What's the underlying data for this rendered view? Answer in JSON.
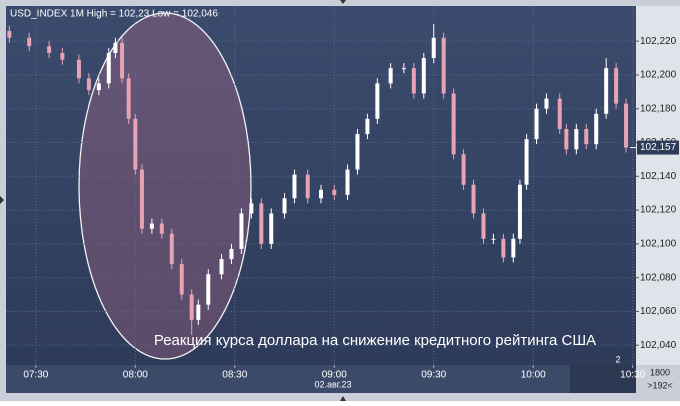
{
  "chart_data": {
    "type": "candlestick",
    "title": "USD_INDEX 1M High = 102,23 Low = 102,046",
    "annotation": "Реакция курса доллара на снижение кредитного рейтинга США",
    "x": [
      442,
      448,
      454,
      458,
      463,
      466,
      469,
      472,
      474,
      476,
      478,
      480,
      482,
      485,
      488,
      491,
      494,
      497,
      499,
      502,
      506,
      509,
      512,
      515,
      518,
      521,
      525,
      528,
      532,
      536,
      540,
      544,
      547,
      550,
      553,
      557,
      561,
      564,
      567,
      570,
      573,
      576,
      579,
      582,
      585,
      588,
      591,
      594,
      596,
      598,
      601,
      604,
      608,
      610,
      613,
      616,
      619,
      622,
      625,
      628
    ],
    "open": [
      102.226,
      102.222,
      102.217,
      102.213,
      102.209,
      102.198,
      102.191,
      102.195,
      102.213,
      102.219,
      102.198,
      102.174,
      102.144,
      102.109,
      102.112,
      102.106,
      102.088,
      102.07,
      102.055,
      102.064,
      102.082,
      102.091,
      102.097,
      102.118,
      102.124,
      102.1,
      102.118,
      102.127,
      102.141,
      102.127,
      102.132,
      102.129,
      102.144,
      102.165,
      102.174,
      102.195,
      102.204,
      102.204,
      102.189,
      102.21,
      102.222,
      102.189,
      102.153,
      102.135,
      102.118,
      102.103,
      102.103,
      102.092,
      102.103,
      102.135,
      102.162,
      102.18,
      102.186,
      102.168,
      102.156,
      102.168,
      102.159,
      102.177,
      102.204,
      102.183
    ],
    "high": [
      102.229,
      102.225,
      102.22,
      102.216,
      102.212,
      102.201,
      102.198,
      102.216,
      102.222,
      102.222,
      102.201,
      102.177,
      102.147,
      102.115,
      102.115,
      102.109,
      102.091,
      102.073,
      102.067,
      102.085,
      102.094,
      102.1,
      102.121,
      102.127,
      102.127,
      102.121,
      102.13,
      102.144,
      102.144,
      102.135,
      102.135,
      102.147,
      102.168,
      102.177,
      102.198,
      102.207,
      102.207,
      102.207,
      102.213,
      102.23,
      102.225,
      102.192,
      102.156,
      102.138,
      102.121,
      102.106,
      102.106,
      102.106,
      102.138,
      102.165,
      102.183,
      102.189,
      102.189,
      102.171,
      102.171,
      102.171,
      102.18,
      102.21,
      102.207,
      102.186
    ],
    "low": [
      102.219,
      102.214,
      102.21,
      102.206,
      102.195,
      102.188,
      102.188,
      102.192,
      102.21,
      102.195,
      102.171,
      102.141,
      102.106,
      102.106,
      102.103,
      102.085,
      102.067,
      102.046,
      102.052,
      102.061,
      102.079,
      102.088,
      102.094,
      102.115,
      102.097,
      102.097,
      102.115,
      102.124,
      102.124,
      102.124,
      102.126,
      102.126,
      102.141,
      102.162,
      102.171,
      102.192,
      102.201,
      102.186,
      102.186,
      102.207,
      102.186,
      102.15,
      102.132,
      102.115,
      102.1,
      102.1,
      102.089,
      102.089,
      102.1,
      102.132,
      102.159,
      102.177,
      102.165,
      102.153,
      102.153,
      102.156,
      102.156,
      102.174,
      102.18,
      102.154
    ],
    "close": [
      102.222,
      102.217,
      102.213,
      102.209,
      102.198,
      102.191,
      102.195,
      102.213,
      102.219,
      102.198,
      102.174,
      102.144,
      102.109,
      102.112,
      102.106,
      102.088,
      102.07,
      102.055,
      102.064,
      102.082,
      102.091,
      102.097,
      102.118,
      102.124,
      102.1,
      102.118,
      102.127,
      102.141,
      102.127,
      102.132,
      102.129,
      102.144,
      102.165,
      102.174,
      102.195,
      102.204,
      102.204,
      102.189,
      102.21,
      102.222,
      102.189,
      102.153,
      102.135,
      102.118,
      102.103,
      102.103,
      102.092,
      102.103,
      102.135,
      102.162,
      102.18,
      102.186,
      102.168,
      102.156,
      102.168,
      102.159,
      102.177,
      102.204,
      102.183,
      102.157
    ],
    "up_color": "#ffffff",
    "down_color": "#e6a3b4",
    "xlim": [
      441,
      631
    ],
    "ylim": [
      102.0283,
      102.2408
    ],
    "xticks": [
      {
        "value": 450,
        "label": "07:30"
      },
      {
        "value": 480,
        "label": "08:00"
      },
      {
        "value": 510,
        "label": "08:30"
      },
      {
        "value": 540,
        "label": "09:00"
      },
      {
        "value": 570,
        "label": "09:30"
      },
      {
        "value": 600,
        "label": "10:00"
      },
      {
        "value": 630,
        "label": "10:30"
      }
    ],
    "yticks": [
      {
        "value": 102.04,
        "label": "102,040"
      },
      {
        "value": 102.06,
        "label": "102,060"
      },
      {
        "value": 102.08,
        "label": "102,080"
      },
      {
        "value": 102.1,
        "label": "102,100"
      },
      {
        "value": 102.12,
        "label": "102,120"
      },
      {
        "value": 102.14,
        "label": "102,140"
      },
      {
        "value": 102.16,
        "label": "102,160"
      },
      {
        "value": 102.18,
        "label": "102,180"
      },
      {
        "value": 102.2,
        "label": "102,200"
      },
      {
        "value": 102.22,
        "label": "102,220"
      }
    ],
    "grid": true,
    "last_price": {
      "value": 102.157,
      "label": "102,157"
    },
    "date_label": "02.авг.23",
    "page_label": "2",
    "corner_top": "1800",
    "corner_bottom": ">192<"
  }
}
